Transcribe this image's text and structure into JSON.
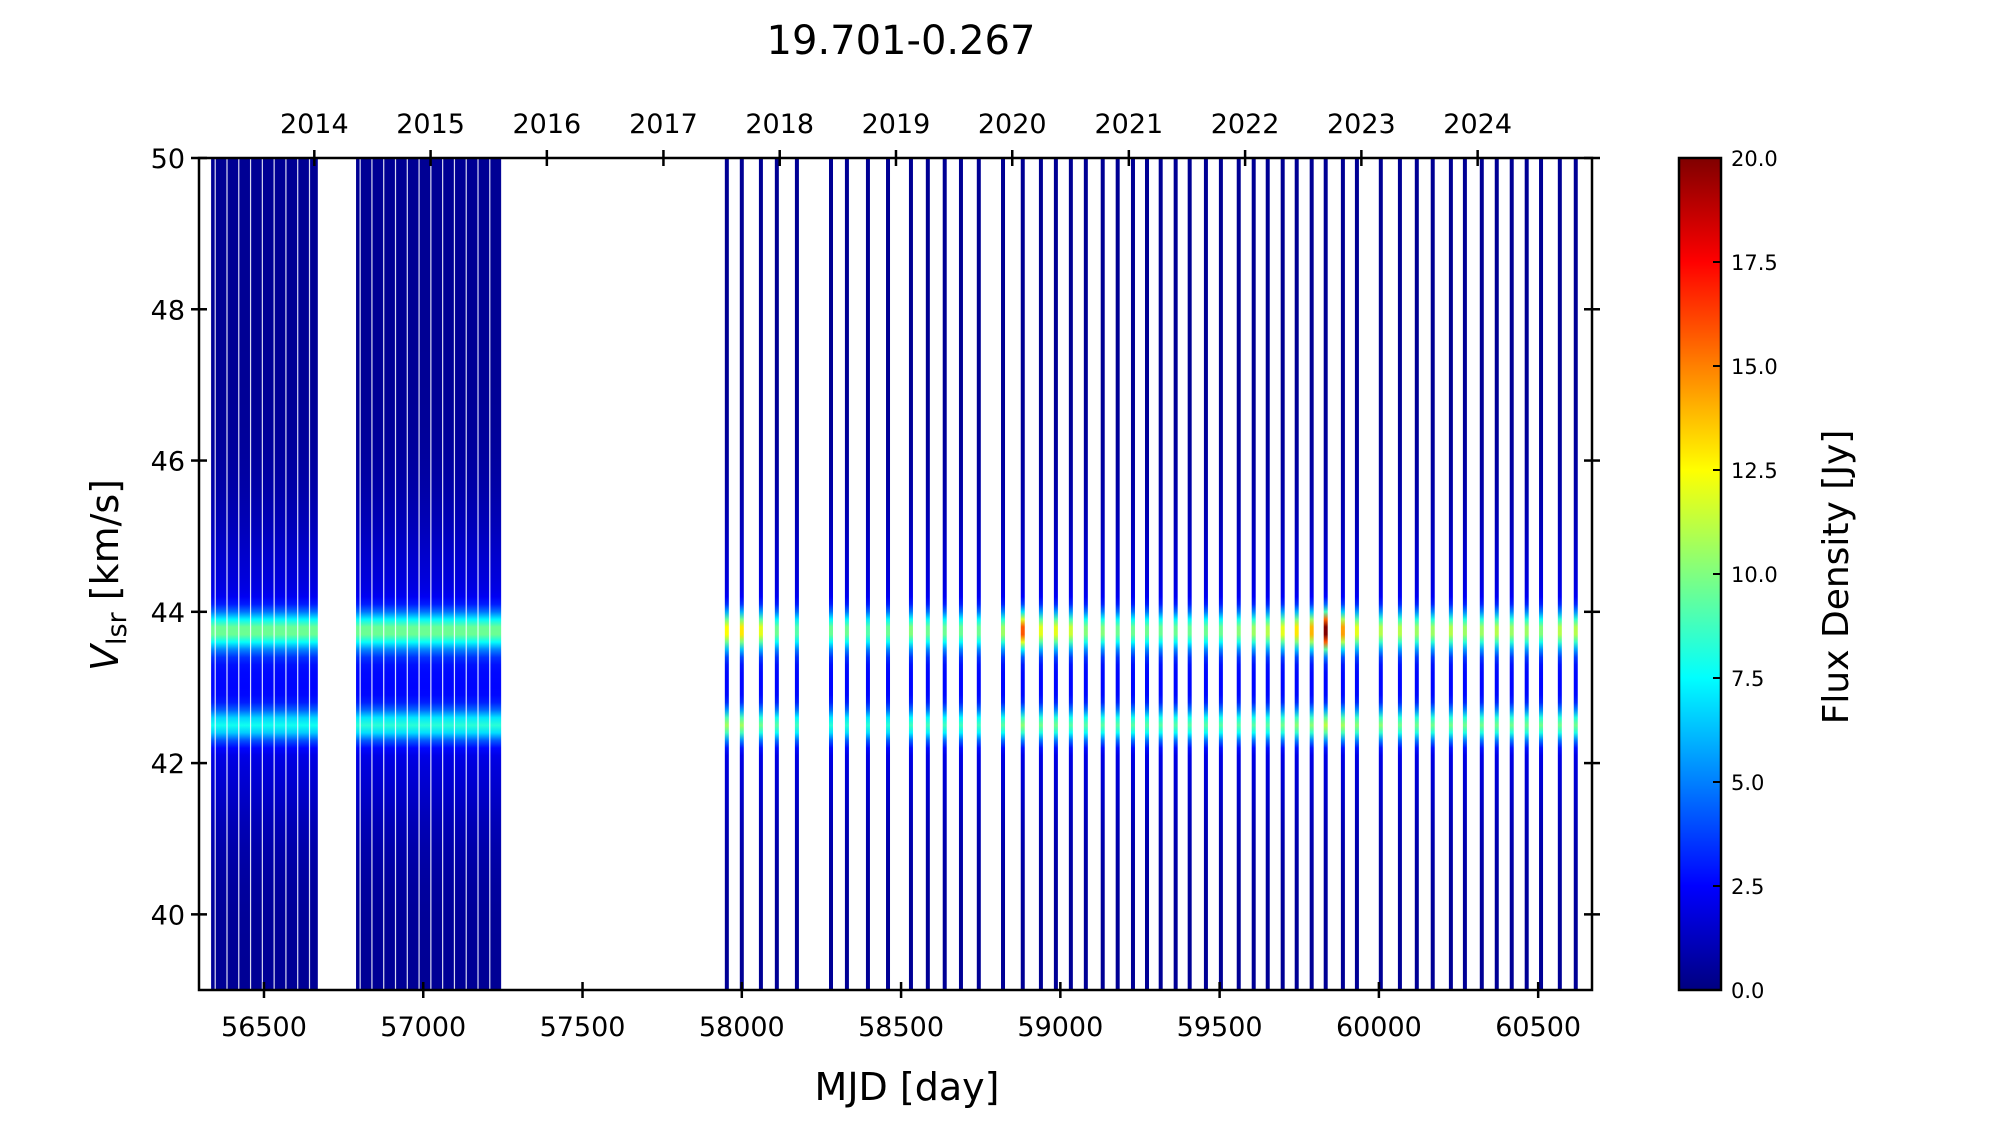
{
  "chart_data": {
    "type": "heatmap",
    "title": "19.701-0.267",
    "xlabel": "MJD [day]",
    "ylabel_main": "V",
    "ylabel_sub": "lsr",
    "ylabel_unit": " [km/s]",
    "colorbar_label": "Flux Density [Jy]",
    "colormap": "jet",
    "xlim": [
      56296,
      60669
    ],
    "ylim": [
      39,
      50
    ],
    "clim": [
      0,
      20
    ],
    "xticks": [
      56500,
      57000,
      57500,
      58000,
      58500,
      59000,
      59500,
      60000,
      60500
    ],
    "xtick_labels": [
      "56500",
      "57000",
      "57500",
      "58000",
      "58500",
      "59000",
      "59500",
      "60000",
      "60500"
    ],
    "yticks": [
      40,
      42,
      44,
      46,
      48,
      50
    ],
    "ytick_labels": [
      "40",
      "42",
      "44",
      "46",
      "48",
      "50"
    ],
    "top_axis": {
      "year_mjd": [
        56658,
        57023,
        57388,
        57754,
        58119,
        58484,
        58849,
        59215,
        59580,
        59945,
        60310
      ],
      "labels": [
        "2014",
        "2015",
        "2016",
        "2017",
        "2018",
        "2019",
        "2020",
        "2021",
        "2022",
        "2023",
        "2024"
      ]
    },
    "colorbar_ticks": [
      0,
      2.5,
      5,
      7.5,
      10,
      12.5,
      15,
      17.5,
      20
    ],
    "colorbar_tick_labels": [
      "0.0",
      "2.5",
      "5.0",
      "7.5",
      "10.0",
      "12.5",
      "15.0",
      "17.5",
      "20.0"
    ],
    "spectral_features": [
      {
        "velocity": 43.75,
        "sigma": 0.17
      },
      {
        "velocity": 42.5,
        "sigma": 0.14
      }
    ],
    "pedestal": {
      "velocity": 43.2,
      "sigma": 1.3,
      "flux": 2.2,
      "baseline": 0.4
    },
    "dense_blocks": [
      {
        "start": 56334,
        "end": 56669,
        "cadence_days": 3,
        "flux_43_75": 7.5,
        "flux_42_5": 5.5
      },
      {
        "start": 56789,
        "end": 57247,
        "cadence_days": 3,
        "flux_43_75": 7.5,
        "flux_42_5": 6.0
      }
    ],
    "epochs": [
      [
        57953,
        10.5,
        8.5
      ],
      [
        58000,
        11,
        8.5
      ],
      [
        58060,
        10,
        7.5
      ],
      [
        58110,
        7.5,
        7
      ],
      [
        58173,
        7,
        6.5
      ],
      [
        58280,
        7.5,
        6
      ],
      [
        58330,
        7.5,
        6
      ],
      [
        58396,
        7,
        6
      ],
      [
        58459,
        7.5,
        6
      ],
      [
        58531,
        8,
        6.5
      ],
      [
        58584,
        7.5,
        6.5
      ],
      [
        58637,
        7.5,
        6.5
      ],
      [
        58688,
        7.5,
        6.5
      ],
      [
        58744,
        7.5,
        6.5
      ],
      [
        58820,
        8.5,
        7
      ],
      [
        58882,
        14,
        8
      ],
      [
        58939,
        10,
        7.5
      ],
      [
        58986,
        10,
        7.5
      ],
      [
        59033,
        9.5,
        7
      ],
      [
        59080,
        8,
        7
      ],
      [
        59133,
        8,
        7
      ],
      [
        59180,
        7.5,
        7
      ],
      [
        59228,
        7.5,
        7
      ],
      [
        59272,
        7.5,
        7
      ],
      [
        59315,
        7.5,
        7
      ],
      [
        59362,
        7.5,
        7
      ],
      [
        59406,
        7.5,
        7
      ],
      [
        59457,
        7.5,
        7
      ],
      [
        59504,
        7.5,
        7
      ],
      [
        59560,
        8,
        7
      ],
      [
        59607,
        8.5,
        7
      ],
      [
        59651,
        9,
        7
      ],
      [
        59698,
        10,
        7.5
      ],
      [
        59742,
        11,
        8
      ],
      [
        59789,
        12,
        8
      ],
      [
        59833,
        19.5,
        9
      ],
      [
        59887,
        12.5,
        8.5
      ],
      [
        59931,
        10,
        8
      ],
      [
        60006,
        9,
        8
      ],
      [
        60066,
        9,
        7.5
      ],
      [
        60119,
        8.5,
        7.5
      ],
      [
        60169,
        8.5,
        7.5
      ],
      [
        60226,
        9,
        7.5
      ],
      [
        60270,
        8.5,
        7.5
      ],
      [
        60323,
        8.5,
        7.5
      ],
      [
        60370,
        9,
        7.5
      ],
      [
        60417,
        8.5,
        7.5
      ],
      [
        60464,
        8.5,
        7.5
      ],
      [
        60509,
        8,
        7.5
      ],
      [
        60568,
        9,
        7.5
      ],
      [
        60618,
        9,
        7.5
      ]
    ]
  }
}
